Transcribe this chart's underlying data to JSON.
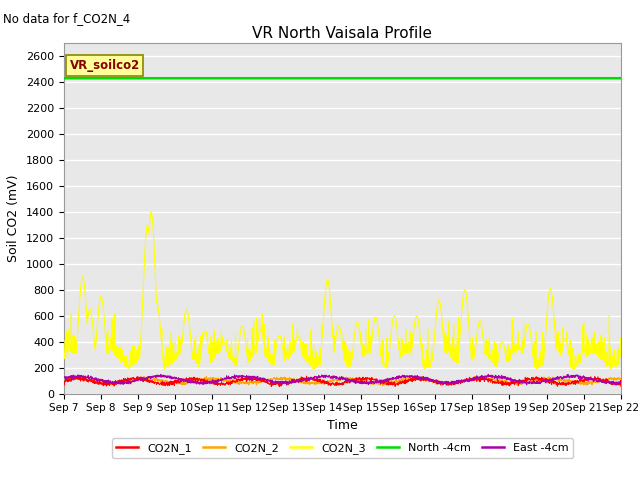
{
  "title": "VR North Vaisala Profile",
  "annotation": "No data for f_CO2N_4",
  "legend_box_label": "VR_soilco2",
  "xlabel": "Time",
  "ylabel": "Soil CO2 (mV)",
  "ylim": [
    0,
    2700
  ],
  "yticks": [
    0,
    200,
    400,
    600,
    800,
    1000,
    1200,
    1400,
    1600,
    1800,
    2000,
    2200,
    2400,
    2600
  ],
  "xstart": 7,
  "xend": 22,
  "xtick_labels": [
    "Sep 7",
    "Sep 8",
    "Sep 9",
    "Sep 10",
    "Sep 11",
    "Sep 12",
    "Sep 13",
    "Sep 14",
    "Sep 15",
    "Sep 16",
    "Sep 17",
    "Sep 18",
    "Sep 19",
    "Sep 20",
    "Sep 21",
    "Sep 22"
  ],
  "north_4cm_value": 2430,
  "background_color": "#e8e8e8",
  "grid_color": "#ffffff",
  "legend_entries": [
    {
      "label": "CO2N_1",
      "color": "#ff0000"
    },
    {
      "label": "CO2N_2",
      "color": "#ffa500"
    },
    {
      "label": "CO2N_3",
      "color": "#ffff00"
    },
    {
      "label": "North -4cm",
      "color": "#00dd00"
    },
    {
      "label": "East -4cm",
      "color": "#aa00aa"
    }
  ]
}
